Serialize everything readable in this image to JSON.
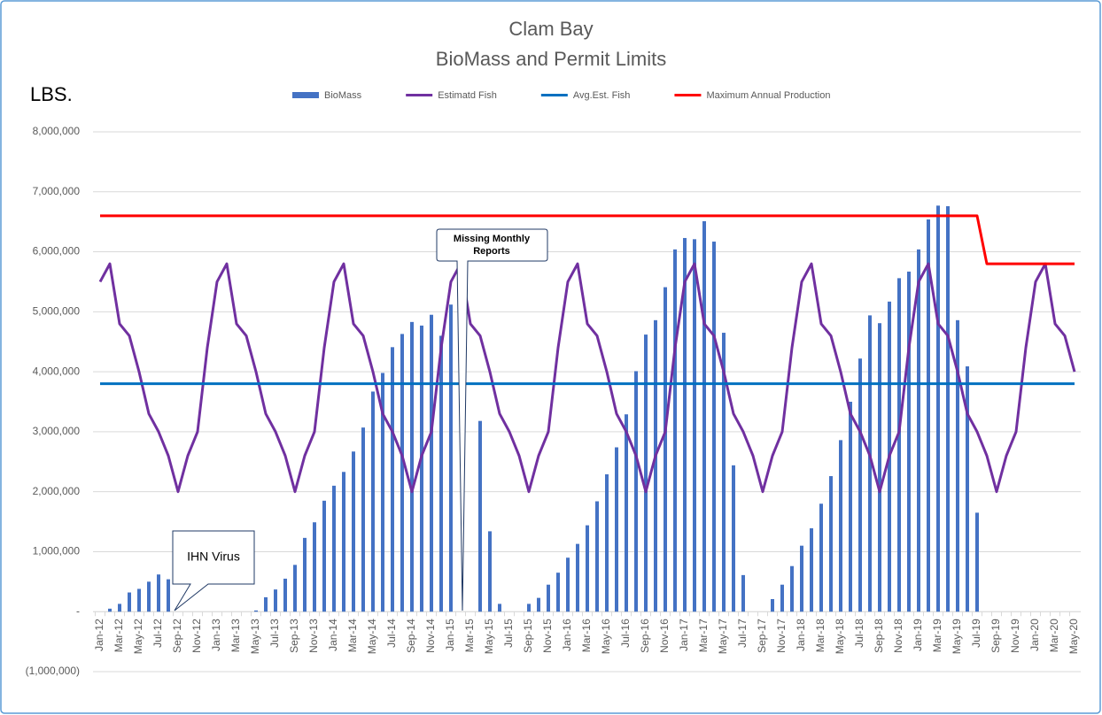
{
  "chart_data": {
    "type": "bar_line",
    "title": "Clam Bay",
    "subtitle": "BioMass and Permit Limits",
    "ylabel": "LBS.",
    "annotations": [
      [
        "IHN Virus"
      ],
      [
        "Missing Monthly",
        "Reports"
      ]
    ],
    "categories": [
      "Jan-12",
      null,
      "Mar-12",
      null,
      "May-12",
      null,
      "Jul-12",
      null,
      "Sep-12",
      null,
      "Nov-12",
      null,
      "Jan-13",
      null,
      "Mar-13",
      null,
      "May-13",
      null,
      "Jul-13",
      null,
      "Sep-13",
      null,
      "Nov-13",
      null,
      "Jan-14",
      null,
      "Mar-14",
      null,
      "May-14",
      null,
      "Jul-14",
      null,
      "Sep-14",
      null,
      "Nov-14",
      null,
      "Jan-15",
      null,
      "Mar-15",
      null,
      "May-15",
      null,
      "Jul-15",
      null,
      "Sep-15",
      null,
      "Nov-15",
      null,
      "Jan-16",
      null,
      "Mar-16",
      null,
      "May-16",
      null,
      "Jul-16",
      null,
      "Sep-16",
      null,
      "Nov-16",
      null,
      "Jan-17",
      null,
      "Mar-17",
      null,
      "May-17",
      null,
      "Jul-17",
      null,
      "Sep-17",
      null,
      "Nov-17",
      null,
      "Jan-18",
      null,
      "Mar-18",
      null,
      "May-18",
      null,
      "Jul-18",
      null,
      "Sep-18",
      null,
      "Nov-18",
      null,
      "Jan-19",
      null,
      "Mar-19",
      null,
      "May-19",
      null,
      "Jul-19",
      null,
      "Sep-19",
      null,
      "Nov-19",
      null,
      "Jan-20",
      null,
      "Mar-20",
      null,
      "May-20"
    ],
    "series": [
      {
        "name": "BioMass",
        "kind": "bar",
        "color": "#4472c4",
        "values": [
          0,
          50000,
          130000,
          320000,
          380000,
          500000,
          620000,
          540000,
          0,
          0,
          0,
          0,
          0,
          0,
          0,
          0,
          20000,
          240000,
          370000,
          550000,
          780000,
          1230000,
          1490000,
          1850000,
          2100000,
          2330000,
          2670000,
          3070000,
          3670000,
          3980000,
          4410000,
          4630000,
          4830000,
          4770000,
          4950000,
          4600000,
          5120000,
          0,
          0,
          3180000,
          1340000,
          130000,
          0,
          0,
          130000,
          230000,
          450000,
          650000,
          900000,
          1130000,
          1440000,
          1840000,
          2290000,
          2740000,
          3290000,
          4010000,
          4620000,
          4860000,
          5410000,
          6040000,
          6230000,
          6210000,
          6510000,
          6170000,
          4650000,
          2440000,
          610000,
          0,
          0,
          210000,
          450000,
          760000,
          1100000,
          1390000,
          1800000,
          2260000,
          2860000,
          3500000,
          4220000,
          4940000,
          4810000,
          5170000,
          5560000,
          5670000,
          6040000,
          6540000,
          6770000,
          6760000,
          4860000,
          4090000,
          1650000,
          0,
          0,
          0,
          0,
          0,
          0,
          0,
          0,
          0,
          0
        ]
      },
      {
        "name": "Estimatd Fish",
        "kind": "line",
        "color": "#7030a0",
        "values": [
          5500000,
          5800000,
          4800000,
          4600000,
          4000000,
          3300000,
          3000000,
          2600000,
          2000000,
          2600000,
          3000000,
          4400000,
          5500000,
          5800000,
          4800000,
          4600000,
          4000000,
          3300000,
          3000000,
          2600000,
          2000000,
          2600000,
          3000000,
          4400000,
          5500000,
          5800000,
          4800000,
          4600000,
          4000000,
          3300000,
          3000000,
          2600000,
          2000000,
          2600000,
          3000000,
          4400000,
          5500000,
          5800000,
          4800000,
          4600000,
          4000000,
          3300000,
          3000000,
          2600000,
          2000000,
          2600000,
          3000000,
          4400000,
          5500000,
          5800000,
          4800000,
          4600000,
          4000000,
          3300000,
          3000000,
          2600000,
          2000000,
          2600000,
          3000000,
          4400000,
          5500000,
          5800000,
          4800000,
          4600000,
          4000000,
          3300000,
          3000000,
          2600000,
          2000000,
          2600000,
          3000000,
          4400000,
          5500000,
          5800000,
          4800000,
          4600000,
          4000000,
          3300000,
          3000000,
          2600000,
          2000000,
          2600000,
          3000000,
          4400000,
          5500000,
          5800000,
          4800000,
          4600000,
          4000000,
          3300000,
          3000000,
          2600000,
          2000000,
          2600000,
          3000000,
          4400000,
          5500000,
          5800000,
          4800000,
          4600000,
          4000000
        ]
      },
      {
        "name": "Avg.Est. Fish",
        "kind": "line",
        "color": "#0070c0",
        "values": [
          3800000,
          3800000,
          3800000,
          3800000,
          3800000,
          3800000,
          3800000,
          3800000,
          3800000,
          3800000,
          3800000,
          3800000,
          3800000,
          3800000,
          3800000,
          3800000,
          3800000,
          3800000,
          3800000,
          3800000,
          3800000,
          3800000,
          3800000,
          3800000,
          3800000,
          3800000,
          3800000,
          3800000,
          3800000,
          3800000,
          3800000,
          3800000,
          3800000,
          3800000,
          3800000,
          3800000,
          3800000,
          3800000,
          3800000,
          3800000,
          3800000,
          3800000,
          3800000,
          3800000,
          3800000,
          3800000,
          3800000,
          3800000,
          3800000,
          3800000,
          3800000,
          3800000,
          3800000,
          3800000,
          3800000,
          3800000,
          3800000,
          3800000,
          3800000,
          3800000,
          3800000,
          3800000,
          3800000,
          3800000,
          3800000,
          3800000,
          3800000,
          3800000,
          3800000,
          3800000,
          3800000,
          3800000,
          3800000,
          3800000,
          3800000,
          3800000,
          3800000,
          3800000,
          3800000,
          3800000,
          3800000,
          3800000,
          3800000,
          3800000,
          3800000,
          3800000,
          3800000,
          3800000,
          3800000,
          3800000,
          3800000,
          3800000,
          3800000,
          3800000,
          3800000,
          3800000,
          3800000,
          3800000,
          3800000,
          3800000,
          3800000
        ]
      },
      {
        "name": "Maximum Annual Production",
        "kind": "line",
        "color": "#ff0000",
        "values": [
          6600000,
          6600000,
          6600000,
          6600000,
          6600000,
          6600000,
          6600000,
          6600000,
          6600000,
          6600000,
          6600000,
          6600000,
          6600000,
          6600000,
          6600000,
          6600000,
          6600000,
          6600000,
          6600000,
          6600000,
          6600000,
          6600000,
          6600000,
          6600000,
          6600000,
          6600000,
          6600000,
          6600000,
          6600000,
          6600000,
          6600000,
          6600000,
          6600000,
          6600000,
          6600000,
          6600000,
          6600000,
          6600000,
          6600000,
          6600000,
          6600000,
          6600000,
          6600000,
          6600000,
          6600000,
          6600000,
          6600000,
          6600000,
          6600000,
          6600000,
          6600000,
          6600000,
          6600000,
          6600000,
          6600000,
          6600000,
          6600000,
          6600000,
          6600000,
          6600000,
          6600000,
          6600000,
          6600000,
          6600000,
          6600000,
          6600000,
          6600000,
          6600000,
          6600000,
          6600000,
          6600000,
          6600000,
          6600000,
          6600000,
          6600000,
          6600000,
          6600000,
          6600000,
          6600000,
          6600000,
          6600000,
          6600000,
          6600000,
          6600000,
          6600000,
          6600000,
          6600000,
          6600000,
          6600000,
          6600000,
          6600000,
          5800000,
          5800000,
          5800000,
          5800000,
          5800000,
          5800000,
          5800000,
          5800000,
          5800000,
          5800000
        ]
      }
    ],
    "ylim": [
      -1000000,
      8000000
    ],
    "yticks": [
      {
        "value": -1000000,
        "label": "(1,000,000)"
      },
      {
        "value": 0,
        "label": "-"
      },
      {
        "value": 1000000,
        "label": "1,000,000"
      },
      {
        "value": 2000000,
        "label": "2,000,000"
      },
      {
        "value": 3000000,
        "label": "3,000,000"
      },
      {
        "value": 4000000,
        "label": "4,000,000"
      },
      {
        "value": 5000000,
        "label": "5,000,000"
      },
      {
        "value": 6000000,
        "label": "6,000,000"
      },
      {
        "value": 7000000,
        "label": "7,000,000"
      },
      {
        "value": 8000000,
        "label": "8,000,000"
      }
    ],
    "grid": true,
    "legend": "top"
  }
}
